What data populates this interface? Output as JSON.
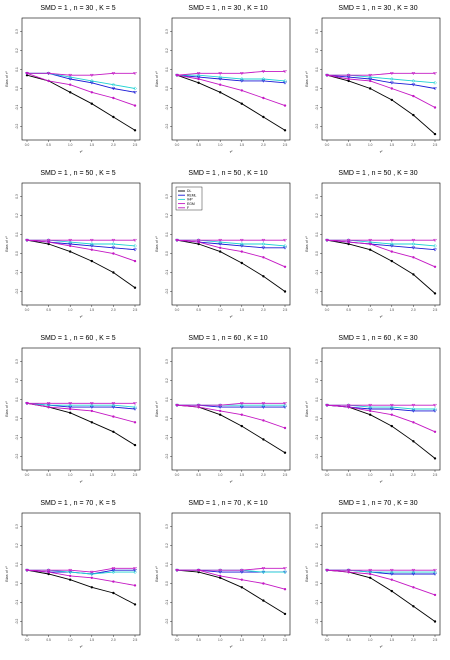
{
  "colors": {
    "DL": "#000000",
    "REML": "#1a1ad6",
    "IHP": "#22d3d3",
    "EGM": "#c418c4",
    "axes": "#000000"
  },
  "legend": {
    "entries": [
      "DL",
      "REML",
      "IHP",
      "EGM",
      "F"
    ]
  },
  "chart_data": [
    {
      "type": "line",
      "title": "SMD = 1 , n = 30 , K = 5",
      "xlabel": "τ²",
      "ylabel": "Bias of τ²",
      "x": [
        0,
        0.5,
        1,
        1.5,
        2,
        2.5
      ],
      "xticks": [
        "0.0",
        "0.5",
        "1.0",
        "1.5",
        "2.0",
        "2.5"
      ],
      "ylim": [
        -0.25,
        0.35
      ],
      "yticks": [
        "0.3",
        "0.2",
        "0.1",
        "0.0",
        "-0.1",
        "-0.2"
      ],
      "series": [
        {
          "name": "DL",
          "values": [
            0.07,
            0.04,
            -0.02,
            -0.08,
            -0.15,
            -0.22
          ]
        },
        {
          "name": "REML",
          "values": [
            0.08,
            0.08,
            0.05,
            0.03,
            0.0,
            -0.02
          ]
        },
        {
          "name": "IHP",
          "values": [
            0.08,
            0.08,
            0.06,
            0.04,
            0.02,
            0.0
          ]
        },
        {
          "name": "EGM",
          "values": [
            0.08,
            0.04,
            0.02,
            -0.02,
            -0.05,
            -0.09
          ]
        },
        {
          "name": "F",
          "values": [
            0.08,
            0.08,
            0.07,
            0.07,
            0.08,
            0.08
          ]
        }
      ]
    },
    {
      "type": "line",
      "title": "SMD = 1 , n = 30 , K = 10",
      "xlabel": "τ²",
      "ylabel": "Bias of τ²",
      "x": [
        0,
        0.5,
        1,
        1.5,
        2,
        2.5
      ],
      "xticks": [
        "0.0",
        "0.5",
        "1.0",
        "1.5",
        "2.0",
        "2.5"
      ],
      "ylim": [
        -0.25,
        0.35
      ],
      "yticks": [
        "0.3",
        "0.2",
        "0.1",
        "0.0",
        "-0.1",
        "-0.2"
      ],
      "series": [
        {
          "name": "DL",
          "values": [
            0.07,
            0.03,
            -0.02,
            -0.08,
            -0.15,
            -0.22
          ]
        },
        {
          "name": "REML",
          "values": [
            0.07,
            0.06,
            0.05,
            0.04,
            0.04,
            0.03
          ]
        },
        {
          "name": "IHP",
          "values": [
            0.07,
            0.07,
            0.06,
            0.05,
            0.05,
            0.04
          ]
        },
        {
          "name": "EGM",
          "values": [
            0.07,
            0.05,
            0.02,
            -0.01,
            -0.05,
            -0.09
          ]
        },
        {
          "name": "F",
          "values": [
            0.07,
            0.08,
            0.08,
            0.08,
            0.09,
            0.09
          ]
        }
      ]
    },
    {
      "type": "line",
      "title": "SMD = 1 , n = 30 , K = 30",
      "xlabel": "τ²",
      "ylabel": "Bias of τ²",
      "x": [
        0,
        0.5,
        1,
        1.5,
        2,
        2.5
      ],
      "xticks": [
        "0.0",
        "0.5",
        "1.0",
        "1.5",
        "2.0",
        "2.5"
      ],
      "ylim": [
        -0.25,
        0.35
      ],
      "yticks": [
        "0.3",
        "0.2",
        "0.1",
        "0.0",
        "-0.1",
        "-0.2"
      ],
      "series": [
        {
          "name": "DL",
          "values": [
            0.07,
            0.04,
            0.0,
            -0.06,
            -0.14,
            -0.24
          ]
        },
        {
          "name": "REML",
          "values": [
            0.07,
            0.06,
            0.05,
            0.03,
            0.02,
            0.0
          ]
        },
        {
          "name": "IHP",
          "values": [
            0.07,
            0.07,
            0.06,
            0.05,
            0.04,
            0.03
          ]
        },
        {
          "name": "EGM",
          "values": [
            0.07,
            0.05,
            0.04,
            0.0,
            -0.04,
            -0.1
          ]
        },
        {
          "name": "F",
          "values": [
            0.07,
            0.07,
            0.07,
            0.08,
            0.08,
            0.08
          ]
        }
      ]
    },
    {
      "type": "line",
      "title": "SMD = 1 , n = 50 , K = 5",
      "xlabel": "τ²",
      "ylabel": "Bias of τ²",
      "x": [
        0,
        0.5,
        1,
        1.5,
        2,
        2.5
      ],
      "xticks": [
        "0.0",
        "0.5",
        "1.0",
        "1.5",
        "2.0",
        "2.5"
      ],
      "ylim": [
        -0.25,
        0.35
      ],
      "yticks": [
        "0.3",
        "0.2",
        "0.1",
        "0.0",
        "-0.1",
        "-0.2"
      ],
      "series": [
        {
          "name": "DL",
          "values": [
            0.07,
            0.05,
            0.01,
            -0.04,
            -0.1,
            -0.18
          ]
        },
        {
          "name": "REML",
          "values": [
            0.07,
            0.06,
            0.05,
            0.04,
            0.03,
            0.02
          ]
        },
        {
          "name": "IHP",
          "values": [
            0.07,
            0.07,
            0.06,
            0.05,
            0.05,
            0.04
          ]
        },
        {
          "name": "EGM",
          "values": [
            0.07,
            0.06,
            0.04,
            0.02,
            0.0,
            -0.04
          ]
        },
        {
          "name": "F",
          "values": [
            0.07,
            0.07,
            0.07,
            0.07,
            0.07,
            0.07
          ]
        }
      ]
    },
    {
      "type": "line",
      "title": "SMD = 1 , n = 50 , K = 10",
      "xlabel": "τ²",
      "ylabel": "Bias of τ²",
      "x": [
        0,
        0.5,
        1,
        1.5,
        2,
        2.5
      ],
      "xticks": [
        "0.0",
        "0.5",
        "1.0",
        "1.5",
        "2.0",
        "2.5"
      ],
      "ylim": [
        -0.25,
        0.35
      ],
      "yticks": [
        "0.3",
        "0.2",
        "0.1",
        "0.0",
        "-0.1",
        "-0.2"
      ],
      "series": [
        {
          "name": "DL",
          "values": [
            0.07,
            0.05,
            0.01,
            -0.05,
            -0.12,
            -0.2
          ]
        },
        {
          "name": "REML",
          "values": [
            0.07,
            0.06,
            0.05,
            0.04,
            0.03,
            0.03
          ]
        },
        {
          "name": "IHP",
          "values": [
            0.07,
            0.07,
            0.06,
            0.05,
            0.05,
            0.04
          ]
        },
        {
          "name": "EGM",
          "values": [
            0.07,
            0.06,
            0.03,
            0.01,
            -0.02,
            -0.07
          ]
        },
        {
          "name": "F",
          "values": [
            0.07,
            0.07,
            0.07,
            0.07,
            0.07,
            0.07
          ]
        }
      ]
    },
    {
      "type": "line",
      "title": "SMD = 1 , n = 50 , K = 30",
      "xlabel": "τ²",
      "ylabel": "Bias of τ²",
      "x": [
        0,
        0.5,
        1,
        1.5,
        2,
        2.5
      ],
      "xticks": [
        "0.0",
        "0.5",
        "1.0",
        "1.5",
        "2.0",
        "2.5"
      ],
      "ylim": [
        -0.25,
        0.35
      ],
      "yticks": [
        "0.3",
        "0.2",
        "0.1",
        "0.0",
        "-0.1",
        "-0.2"
      ],
      "series": [
        {
          "name": "DL",
          "values": [
            0.07,
            0.05,
            0.02,
            -0.04,
            -0.11,
            -0.21
          ]
        },
        {
          "name": "REML",
          "values": [
            0.07,
            0.06,
            0.05,
            0.04,
            0.03,
            0.02
          ]
        },
        {
          "name": "IHP",
          "values": [
            0.07,
            0.07,
            0.06,
            0.05,
            0.05,
            0.04
          ]
        },
        {
          "name": "EGM",
          "values": [
            0.07,
            0.06,
            0.05,
            0.01,
            -0.02,
            -0.07
          ]
        },
        {
          "name": "F",
          "values": [
            0.07,
            0.07,
            0.07,
            0.07,
            0.07,
            0.07
          ]
        }
      ]
    },
    {
      "type": "line",
      "title": "SMD = 1 , n = 60 , K = 5",
      "xlabel": "τ²",
      "ylabel": "Bias of τ²",
      "x": [
        0,
        0.5,
        1,
        1.5,
        2,
        2.5
      ],
      "xticks": [
        "0.0",
        "0.5",
        "1.0",
        "1.5",
        "2.0",
        "2.5"
      ],
      "ylim": [
        -0.25,
        0.35
      ],
      "yticks": [
        "0.3",
        "0.2",
        "0.1",
        "0.0",
        "-0.1",
        "-0.2"
      ],
      "series": [
        {
          "name": "DL",
          "values": [
            0.08,
            0.06,
            0.03,
            -0.02,
            -0.07,
            -0.14
          ]
        },
        {
          "name": "REML",
          "values": [
            0.08,
            0.07,
            0.06,
            0.06,
            0.06,
            0.05
          ]
        },
        {
          "name": "IHP",
          "values": [
            0.08,
            0.07,
            0.07,
            0.07,
            0.07,
            0.06
          ]
        },
        {
          "name": "EGM",
          "values": [
            0.08,
            0.06,
            0.05,
            0.04,
            0.01,
            -0.02
          ]
        },
        {
          "name": "F",
          "values": [
            0.08,
            0.08,
            0.08,
            0.08,
            0.08,
            0.08
          ]
        }
      ]
    },
    {
      "type": "line",
      "title": "SMD = 1 , n = 60 , K = 10",
      "xlabel": "τ²",
      "ylabel": "Bias of τ²",
      "x": [
        0,
        0.5,
        1,
        1.5,
        2,
        2.5
      ],
      "xticks": [
        "0.0",
        "0.5",
        "1.0",
        "1.5",
        "2.0",
        "2.5"
      ],
      "ylim": [
        -0.25,
        0.35
      ],
      "yticks": [
        "0.3",
        "0.2",
        "0.1",
        "0.0",
        "-0.1",
        "-0.2"
      ],
      "series": [
        {
          "name": "DL",
          "values": [
            0.07,
            0.06,
            0.02,
            -0.04,
            -0.11,
            -0.18
          ]
        },
        {
          "name": "REML",
          "values": [
            0.07,
            0.07,
            0.06,
            0.06,
            0.06,
            0.06
          ]
        },
        {
          "name": "IHP",
          "values": [
            0.07,
            0.07,
            0.07,
            0.07,
            0.07,
            0.07
          ]
        },
        {
          "name": "EGM",
          "values": [
            0.07,
            0.06,
            0.04,
            0.02,
            -0.01,
            -0.05
          ]
        },
        {
          "name": "F",
          "values": [
            0.07,
            0.07,
            0.07,
            0.08,
            0.08,
            0.08
          ]
        }
      ]
    },
    {
      "type": "line",
      "title": "SMD = 1 , n = 60 , K = 30",
      "xlabel": "τ²",
      "ylabel": "Bias of τ²",
      "x": [
        0,
        0.5,
        1,
        1.5,
        2,
        2.5
      ],
      "xticks": [
        "0.0",
        "0.5",
        "1.0",
        "1.5",
        "2.0",
        "2.5"
      ],
      "ylim": [
        -0.25,
        0.35
      ],
      "yticks": [
        "0.3",
        "0.2",
        "0.1",
        "0.0",
        "-0.1",
        "-0.2"
      ],
      "series": [
        {
          "name": "DL",
          "values": [
            0.07,
            0.06,
            0.02,
            -0.04,
            -0.12,
            -0.21
          ]
        },
        {
          "name": "REML",
          "values": [
            0.07,
            0.06,
            0.05,
            0.05,
            0.04,
            0.04
          ]
        },
        {
          "name": "IHP",
          "values": [
            0.07,
            0.07,
            0.06,
            0.06,
            0.05,
            0.05
          ]
        },
        {
          "name": "EGM",
          "values": [
            0.07,
            0.06,
            0.04,
            0.02,
            -0.02,
            -0.07
          ]
        },
        {
          "name": "F",
          "values": [
            0.07,
            0.07,
            0.07,
            0.07,
            0.07,
            0.07
          ]
        }
      ]
    },
    {
      "type": "line",
      "title": "SMD = 1 , n = 70 , K = 5",
      "xlabel": "τ²",
      "ylabel": "Bias of τ²",
      "x": [
        0,
        0.5,
        1,
        1.5,
        2,
        2.5
      ],
      "xticks": [
        "0.0",
        "0.5",
        "1.0",
        "1.5",
        "2.0",
        "2.5"
      ],
      "ylim": [
        -0.25,
        0.35
      ],
      "yticks": [
        "0.3",
        "0.2",
        "0.1",
        "0.0",
        "-0.1",
        "-0.2"
      ],
      "series": [
        {
          "name": "DL",
          "values": [
            0.07,
            0.05,
            0.02,
            -0.02,
            -0.05,
            -0.11
          ]
        },
        {
          "name": "REML",
          "values": [
            0.07,
            0.06,
            0.06,
            0.05,
            0.07,
            0.07
          ]
        },
        {
          "name": "IHP",
          "values": [
            0.07,
            0.07,
            0.06,
            0.05,
            0.06,
            0.06
          ]
        },
        {
          "name": "EGM",
          "values": [
            0.07,
            0.06,
            0.04,
            0.03,
            0.01,
            -0.01
          ]
        },
        {
          "name": "F",
          "values": [
            0.07,
            0.07,
            0.07,
            0.06,
            0.08,
            0.08
          ]
        }
      ]
    },
    {
      "type": "line",
      "title": "SMD = 1 , n = 70 , K = 10",
      "xlabel": "τ²",
      "ylabel": "Bias of τ²",
      "x": [
        0,
        0.5,
        1,
        1.5,
        2,
        2.5
      ],
      "xticks": [
        "0.0",
        "0.5",
        "1.0",
        "1.5",
        "2.0",
        "2.5"
      ],
      "ylim": [
        -0.25,
        0.35
      ],
      "yticks": [
        "0.3",
        "0.2",
        "0.1",
        "0.0",
        "-0.1",
        "-0.2"
      ],
      "series": [
        {
          "name": "DL",
          "values": [
            0.07,
            0.06,
            0.03,
            -0.02,
            -0.09,
            -0.16
          ]
        },
        {
          "name": "REML",
          "values": [
            0.07,
            0.07,
            0.06,
            0.06,
            0.06,
            0.06
          ]
        },
        {
          "name": "IHP",
          "values": [
            0.07,
            0.07,
            0.07,
            0.07,
            0.06,
            0.06
          ]
        },
        {
          "name": "EGM",
          "values": [
            0.07,
            0.07,
            0.04,
            0.02,
            0.0,
            -0.03
          ]
        },
        {
          "name": "F",
          "values": [
            0.07,
            0.07,
            0.07,
            0.07,
            0.08,
            0.08
          ]
        }
      ]
    },
    {
      "type": "line",
      "title": "SMD = 1 , n = 70 , K = 30",
      "xlabel": "τ²",
      "ylabel": "Bias of τ²",
      "x": [
        0,
        0.5,
        1,
        1.5,
        2,
        2.5
      ],
      "xticks": [
        "0.0",
        "0.5",
        "1.0",
        "1.5",
        "2.0",
        "2.5"
      ],
      "ylim": [
        -0.25,
        0.35
      ],
      "yticks": [
        "0.3",
        "0.2",
        "0.1",
        "0.0",
        "-0.1",
        "-0.2"
      ],
      "series": [
        {
          "name": "DL",
          "values": [
            0.07,
            0.06,
            0.03,
            -0.04,
            -0.12,
            -0.2
          ]
        },
        {
          "name": "REML",
          "values": [
            0.07,
            0.07,
            0.06,
            0.05,
            0.05,
            0.05
          ]
        },
        {
          "name": "IHP",
          "values": [
            0.07,
            0.07,
            0.06,
            0.06,
            0.06,
            0.06
          ]
        },
        {
          "name": "EGM",
          "values": [
            0.07,
            0.06,
            0.05,
            0.02,
            -0.02,
            -0.06
          ]
        },
        {
          "name": "F",
          "values": [
            0.07,
            0.07,
            0.07,
            0.07,
            0.07,
            0.07
          ]
        }
      ]
    }
  ]
}
